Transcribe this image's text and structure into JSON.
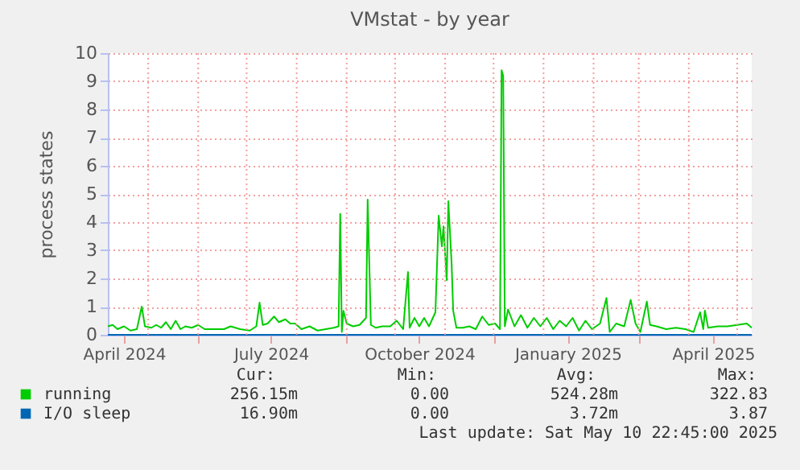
{
  "chart_data": {
    "type": "line",
    "title": "VMstat - by year",
    "ylabel": "process states",
    "xlim": [
      "2024-04-06",
      "2025-05-10"
    ],
    "xticks": [
      {
        "value": "2024-05-01",
        "label": null
      },
      {
        "value": "2024-06-01",
        "label": null
      },
      {
        "value": "2024-07-01",
        "label": null
      },
      {
        "value": "2024-08-01",
        "label": null
      },
      {
        "value": "2024-09-01",
        "label": null
      },
      {
        "value": "2024-10-01",
        "label": null
      },
      {
        "value": "2024-11-01",
        "label": null
      },
      {
        "value": "2024-12-01",
        "label": null
      },
      {
        "value": "2025-01-01",
        "label": null
      },
      {
        "value": "2025-02-01",
        "label": null
      },
      {
        "value": "2025-03-01",
        "label": null
      },
      {
        "value": "2025-04-01",
        "label": null
      },
      {
        "value": "2025-05-01",
        "label": null
      },
      {
        "value": "2024-04-16",
        "label": "April 2024"
      },
      {
        "value": "2024-07-16",
        "label": "July 2024"
      },
      {
        "value": "2024-10-16",
        "label": "October 2024"
      },
      {
        "value": "2025-01-16",
        "label": "January 2025"
      },
      {
        "value": "2025-04-16",
        "label": "April 2025"
      }
    ],
    "ylim": [
      0,
      10
    ],
    "yticks": [
      0,
      1,
      2,
      3,
      4,
      5,
      6,
      7,
      8,
      9,
      10
    ],
    "grid": true,
    "legend": "bottom",
    "line_style": "solid",
    "marker": "none",
    "series": [
      {
        "name": "running",
        "color": "#00cc00",
        "x": [
          "2024-04-06",
          "2024-04-09",
          "2024-04-12",
          "2024-04-16",
          "2024-04-20",
          "2024-04-24",
          "2024-04-27",
          "2024-04-29",
          "2024-05-03",
          "2024-05-06",
          "2024-05-09",
          "2024-05-12",
          "2024-05-15",
          "2024-05-18",
          "2024-05-21",
          "2024-05-24",
          "2024-05-28",
          "2024-06-01",
          "2024-06-05",
          "2024-06-11",
          "2024-06-17",
          "2024-06-21",
          "2024-06-27",
          "2024-07-03",
          "2024-07-07",
          "2024-07-09",
          "2024-07-11",
          "2024-07-14",
          "2024-07-18",
          "2024-07-21",
          "2024-07-25",
          "2024-07-28",
          "2024-07-31",
          "2024-08-04",
          "2024-08-09",
          "2024-08-14",
          "2024-08-19",
          "2024-08-24",
          "2024-08-27",
          "2024-08-28",
          "2024-08-29",
          "2024-08-30",
          "2024-09-01",
          "2024-09-05",
          "2024-09-09",
          "2024-09-13",
          "2024-09-14",
          "2024-09-16",
          "2024-09-19",
          "2024-09-23",
          "2024-09-28",
          "2024-10-02",
          "2024-10-06",
          "2024-10-09",
          "2024-10-10",
          "2024-10-13",
          "2024-10-16",
          "2024-10-19",
          "2024-10-22",
          "2024-10-26",
          "2024-10-28",
          "2024-10-30",
          "2024-10-31",
          "2024-11-02",
          "2024-11-03",
          "2024-11-05",
          "2024-11-06",
          "2024-11-08",
          "2024-11-12",
          "2024-11-16",
          "2024-11-20",
          "2024-11-24",
          "2024-11-28",
          "2024-12-02",
          "2024-12-05",
          "2024-12-06",
          "2024-12-07",
          "2024-12-08",
          "2024-12-10",
          "2024-12-14",
          "2024-12-18",
          "2024-12-22",
          "2024-12-26",
          "2024-12-30",
          "2025-01-03",
          "2025-01-07",
          "2025-01-11",
          "2025-01-15",
          "2025-01-19",
          "2025-01-23",
          "2025-01-27",
          "2025-01-31",
          "2025-02-05",
          "2025-02-09",
          "2025-02-11",
          "2025-02-15",
          "2025-02-20",
          "2025-02-24",
          "2025-02-27",
          "2025-03-02",
          "2025-03-06",
          "2025-03-08",
          "2025-03-12",
          "2025-03-18",
          "2025-03-24",
          "2025-03-30",
          "2025-04-04",
          "2025-04-08",
          "2025-04-10",
          "2025-04-11",
          "2025-04-13",
          "2025-04-19",
          "2025-04-25",
          "2025-05-01",
          "2025-05-07",
          "2025-05-10"
        ],
        "values": [
          0.3,
          0.35,
          0.2,
          0.3,
          0.15,
          0.2,
          1.0,
          0.3,
          0.25,
          0.35,
          0.25,
          0.45,
          0.2,
          0.5,
          0.2,
          0.3,
          0.25,
          0.35,
          0.2,
          0.2,
          0.2,
          0.3,
          0.2,
          0.15,
          0.3,
          1.14,
          0.35,
          0.4,
          0.65,
          0.45,
          0.55,
          0.4,
          0.4,
          0.2,
          0.3,
          0.15,
          0.2,
          0.25,
          0.3,
          4.29,
          0.1,
          0.85,
          0.4,
          0.3,
          0.35,
          0.6,
          4.8,
          0.35,
          0.25,
          0.3,
          0.3,
          0.5,
          0.2,
          2.23,
          0.25,
          0.6,
          0.3,
          0.6,
          0.3,
          0.8,
          4.23,
          3.14,
          3.85,
          1.94,
          4.74,
          2.57,
          0.86,
          0.25,
          0.25,
          0.3,
          0.2,
          0.65,
          0.35,
          0.4,
          0.2,
          9.39,
          9.2,
          0.3,
          0.9,
          0.3,
          0.7,
          0.25,
          0.6,
          0.3,
          0.6,
          0.2,
          0.5,
          0.3,
          0.6,
          0.15,
          0.5,
          0.2,
          0.4,
          1.31,
          0.1,
          0.4,
          0.3,
          1.24,
          0.4,
          0.1,
          1.18,
          0.35,
          0.3,
          0.2,
          0.25,
          0.2,
          0.1,
          0.8,
          0.2,
          0.86,
          0.25,
          0.3,
          0.3,
          0.35,
          0.4,
          0.25
        ]
      },
      {
        "name": "I/O sleep",
        "color": "#0066b3",
        "x": [
          "2024-04-06",
          "2025-05-10"
        ],
        "values": [
          0,
          0
        ]
      }
    ],
    "annotations": [
      "Cur:",
      "Min:",
      "Avg:",
      "Max:",
      "256.15m",
      "0.00",
      "524.28m",
      "322.83",
      "16.90m",
      "0.00",
      "3.72m",
      "3.87",
      "Last update: Sat May 10 22:45:00 2025"
    ]
  }
}
